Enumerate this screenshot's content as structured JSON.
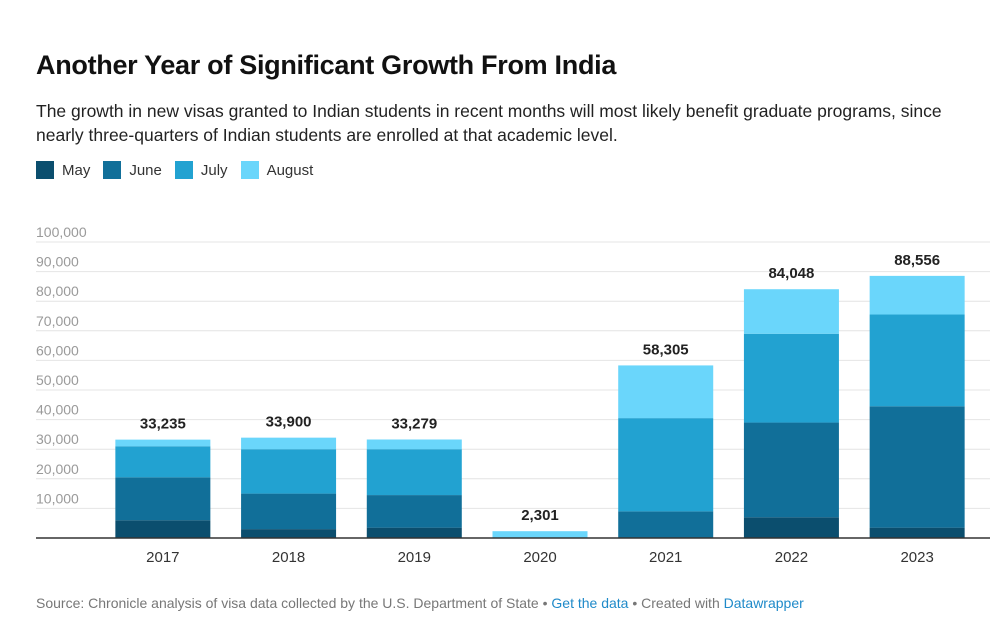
{
  "title": "Another Year of Significant Growth From India",
  "subtitle": "The growth in new visas granted to Indian students in recent months will most likely benefit graduate programs, since nearly three-quarters of Indian students are enrolled at that academic level.",
  "legend": [
    {
      "label": "May",
      "color": "#0b4e6e"
    },
    {
      "label": "June",
      "color": "#116f99"
    },
    {
      "label": "July",
      "color": "#22a2d1"
    },
    {
      "label": "August",
      "color": "#6ad6fb"
    }
  ],
  "footer": {
    "source": "Source: Chronicle analysis of visa data collected by the U.S. Department of State",
    "sep1": " • ",
    "get_data": "Get the data",
    "sep2": " • ",
    "created_with": "Created with ",
    "datawrapper": "Datawrapper"
  },
  "chart_data": {
    "type": "bar",
    "stacked": true,
    "categories": [
      "2017",
      "2018",
      "2019",
      "2020",
      "2021",
      "2022",
      "2023"
    ],
    "series": [
      {
        "name": "May",
        "color": "#0b4e6e",
        "values": [
          6000,
          3000,
          3500,
          0,
          0,
          7000,
          3500
        ]
      },
      {
        "name": "June",
        "color": "#116f99",
        "values": [
          14500,
          12000,
          11000,
          0,
          9000,
          32000,
          41000
        ]
      },
      {
        "name": "July",
        "color": "#22a2d1",
        "values": [
          10500,
          15000,
          15500,
          0,
          31500,
          30000,
          31000
        ]
      },
      {
        "name": "August",
        "color": "#6ad6fb",
        "values": [
          2235,
          3900,
          3279,
          2301,
          17805,
          15048,
          13056
        ]
      }
    ],
    "totals": [
      33235,
      33900,
      33279,
      2301,
      58305,
      84048,
      88556
    ],
    "total_labels": [
      "33,235",
      "33,900",
      "33,279",
      "2,301",
      "58,305",
      "84,048",
      "88,556"
    ],
    "y_ticks": [
      10000,
      20000,
      30000,
      40000,
      50000,
      60000,
      70000,
      80000,
      90000,
      100000
    ],
    "y_tick_labels": [
      "10,000",
      "20,000",
      "30,000",
      "40,000",
      "50,000",
      "60,000",
      "70,000",
      "80,000",
      "90,000",
      "100,000"
    ],
    "ylim": [
      0,
      100000
    ],
    "xlabel": "",
    "ylabel": "",
    "grid": true
  }
}
